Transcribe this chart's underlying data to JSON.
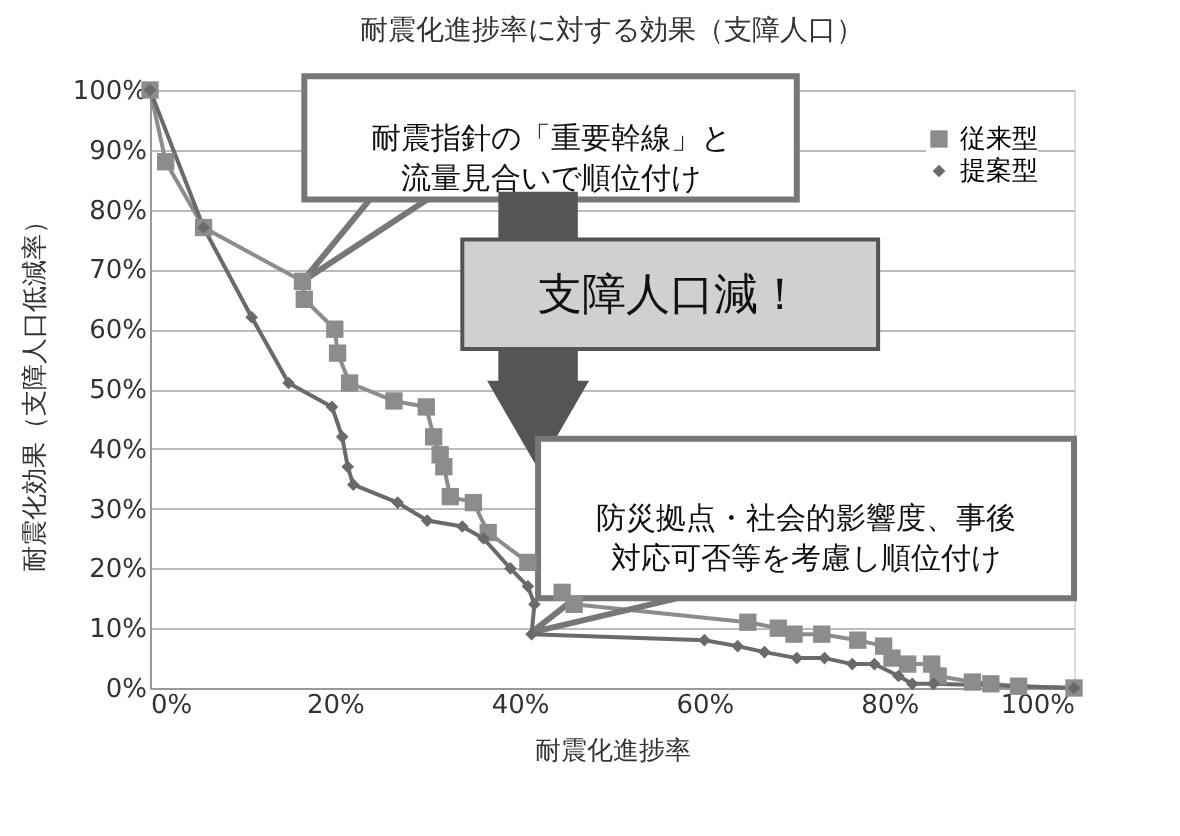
{
  "chart_data": {
    "type": "line",
    "title": "耐震化進捗率に対する効果（支障人口）",
    "xlabel": "耐震化進捗率",
    "ylabel": "耐震化効果（支障人口低減率）",
    "xlim": [
      0,
      100
    ],
    "ylim": [
      0,
      100
    ],
    "xticks": [
      {
        "value": 0,
        "label": "0%"
      },
      {
        "value": 20,
        "label": "20%"
      },
      {
        "value": 40,
        "label": "40%"
      },
      {
        "value": 60,
        "label": "60%"
      },
      {
        "value": 80,
        "label": "80%"
      },
      {
        "value": 100,
        "label": "100%"
      }
    ],
    "yticks": [
      {
        "value": 0,
        "label": "0%"
      },
      {
        "value": 10,
        "label": "10%"
      },
      {
        "value": 20,
        "label": "20%"
      },
      {
        "value": 30,
        "label": "30%"
      },
      {
        "value": 40,
        "label": "40%"
      },
      {
        "value": 50,
        "label": "50%"
      },
      {
        "value": 60,
        "label": "60%"
      },
      {
        "value": 70,
        "label": "70%"
      },
      {
        "value": 80,
        "label": "80%"
      },
      {
        "value": 90,
        "label": "90%"
      },
      {
        "value": 100,
        "label": "100%"
      }
    ],
    "grid": "y",
    "legend": "top right",
    "series": [
      {
        "name": "従来型",
        "color": "#8c8c8c",
        "marker": "square",
        "x": [
          0,
          1.7,
          5.8,
          16.5,
          16.7,
          20,
          20.3,
          21.6,
          26.4,
          29.9,
          30.7,
          31.4,
          31.8,
          32.5,
          35,
          36.6,
          40.9,
          44.6,
          45.9,
          64.7,
          68,
          69.7,
          72.7,
          76.6,
          79.4,
          80.3,
          82,
          84.6,
          85.3,
          89,
          91,
          94,
          100
        ],
        "values": [
          100,
          88,
          77,
          68,
          65,
          60,
          56,
          51,
          48,
          47,
          42,
          39,
          37,
          32,
          31,
          26,
          21,
          16,
          14,
          11,
          10,
          9,
          9,
          8,
          7,
          5,
          4,
          4,
          2,
          1,
          0.7,
          0.3,
          0
        ]
      },
      {
        "name": "提案型",
        "color": "#6a6a6a",
        "marker": "diamond",
        "x": [
          0,
          5.8,
          11,
          15,
          19.7,
          20.8,
          21.4,
          22,
          26.8,
          30,
          33.8,
          36.1,
          39,
          40.9,
          41.6,
          41.3,
          60,
          63.6,
          66.5,
          70,
          73,
          76,
          78.4,
          81,
          82.5,
          84.8,
          100
        ],
        "values": [
          100,
          77,
          62,
          51,
          47,
          42,
          37,
          34,
          31,
          28,
          27,
          25,
          20,
          17,
          14,
          9,
          8,
          7,
          6,
          5,
          5,
          4,
          4,
          2,
          0.7,
          0.7,
          0
        ]
      }
    ],
    "annotations": [
      "耐震指針の「重要幹線」と流量見合いで順位付け",
      "支障人口減！",
      "防災拠点・社会的影響度、事後対応可否等を考慮し順位付け"
    ]
  }
}
